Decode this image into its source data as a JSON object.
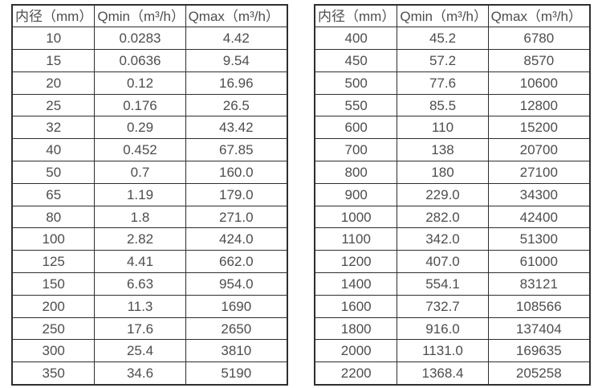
{
  "page": {
    "background_color": "#ffffff",
    "border_color": "#2e2e2e",
    "text_color": "#4d4d4d"
  },
  "tables": [
    {
      "name": "flow-rate-table-small-diameters",
      "headers": [
        "内径（mm）",
        "Qmin（m³/h）",
        "Qmax（m³/h）"
      ],
      "rows": [
        [
          "10",
          "0.0283",
          "4.42"
        ],
        [
          "15",
          "0.0636",
          "9.54"
        ],
        [
          "20",
          "0.12",
          "16.96"
        ],
        [
          "25",
          "0.176",
          "26.5"
        ],
        [
          "32",
          "0.29",
          "43.42"
        ],
        [
          "40",
          "0.452",
          "67.85"
        ],
        [
          "50",
          "0.7",
          "160.0"
        ],
        [
          "65",
          "1.19",
          "179.0"
        ],
        [
          "80",
          "1.8",
          "271.0"
        ],
        [
          "100",
          "2.82",
          "424.0"
        ],
        [
          "125",
          "4.41",
          "662.0"
        ],
        [
          "150",
          "6.63",
          "954.0"
        ],
        [
          "200",
          "11.3",
          "1690"
        ],
        [
          "250",
          "17.6",
          "2650"
        ],
        [
          "300",
          "25.4",
          "3810"
        ],
        [
          "350",
          "34.6",
          "5190"
        ]
      ]
    },
    {
      "name": "flow-rate-table-large-diameters",
      "headers": [
        "内径（mm）",
        "Qmin（m³/h）",
        "Qmax（m³/h）"
      ],
      "rows": [
        [
          "400",
          "45.2",
          "6780"
        ],
        [
          "450",
          "57.2",
          "8570"
        ],
        [
          "500",
          "77.6",
          "10600"
        ],
        [
          "550",
          "85.5",
          "12800"
        ],
        [
          "600",
          "110",
          "15200"
        ],
        [
          "700",
          "138",
          "20700"
        ],
        [
          "800",
          "180",
          "27100"
        ],
        [
          "900",
          "229.0",
          "34300"
        ],
        [
          "1000",
          "282.0",
          "42400"
        ],
        [
          "1100",
          "342.0",
          "51300"
        ],
        [
          "1200",
          "407.0",
          "61000"
        ],
        [
          "1400",
          "554.1",
          "83121"
        ],
        [
          "1600",
          "732.7",
          "108566"
        ],
        [
          "1800",
          "916.0",
          "137404"
        ],
        [
          "2000",
          "1131.0",
          "169635"
        ],
        [
          "2200",
          "1368.4",
          "205258"
        ]
      ]
    }
  ]
}
